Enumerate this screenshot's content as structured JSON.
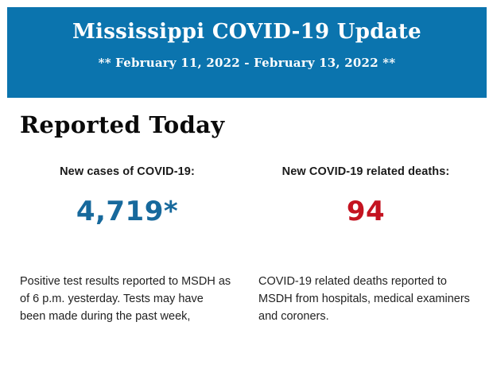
{
  "banner": {
    "title": "Mississippi COVID-19 Update",
    "date_range": "** February 11, 2022 - February 13, 2022 **",
    "background_color": "#0b74ae",
    "text_color": "#ffffff"
  },
  "section": {
    "heading": "Reported Today"
  },
  "stats": {
    "cases": {
      "label": "New cases of COVID-19:",
      "value": "4,719*",
      "value_color": "#17699c",
      "description": "Positive test results reported to MSDH as of 6 p.m. yesterday. Tests may have been made during the past week,"
    },
    "deaths": {
      "label": "New COVID-19 related deaths:",
      "value": "94",
      "value_color": "#c41320",
      "description": "COVID-19 related deaths reported to MSDH from hospitals, medical examiners and coroners."
    }
  }
}
